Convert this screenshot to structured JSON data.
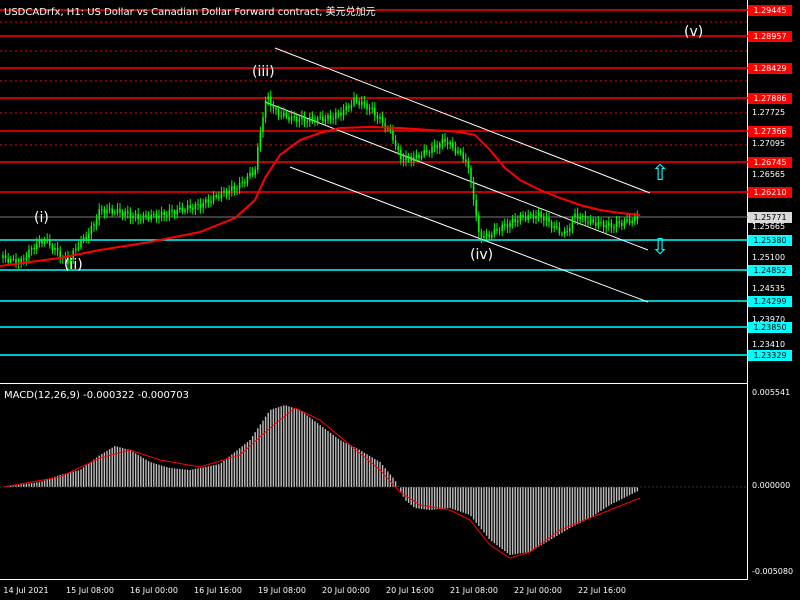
{
  "title": "USDCADrfx, H1: US Dollar vs Canadian Dollar Forward contract, 美元兑加元",
  "macd_title": "MACD(12,26,9) -0.000322 -0.000703",
  "colors": {
    "candle": "#00ff00",
    "ma": "#ff0000",
    "red_level": "#ff0000",
    "cyan_level": "#00ffff",
    "channel": "#ffffff",
    "macd_hist": "#c0c0c0",
    "macd_signal": "#ff0000"
  },
  "wave_labels": [
    "(i)",
    "(ii)",
    "(iii)",
    "(iv)",
    "(v)"
  ],
  "levels": {
    "red": [
      "1.29445",
      "1.28957",
      "1.28429",
      "1.27886",
      "1.27366",
      "1.26745",
      "1.26210"
    ],
    "cyan": [
      "1.25380",
      "1.24852",
      "1.24299",
      "1.23850",
      "1.23329"
    ],
    "current": "1.25771"
  },
  "price_ticks": [
    "1.27725",
    "1.27095",
    "1.26565",
    "1.25665",
    "1.25100",
    "1.24535",
    "1.23970",
    "1.23410"
  ],
  "macd_ticks": [
    "0.005541",
    "0.000000",
    "-0.005080"
  ],
  "time_labels": [
    "14 Jul 2021",
    "15 Jul 08:00",
    "16 Jul 00:00",
    "16 Jul 16:00",
    "19 Jul 08:00",
    "20 Jul 00:00",
    "20 Jul 16:00",
    "21 Jul 08:00",
    "22 Jul 00:00",
    "22 Jul 16:00"
  ],
  "icons": [
    "up-arrow-icon",
    "down-arrow-icon"
  ]
}
